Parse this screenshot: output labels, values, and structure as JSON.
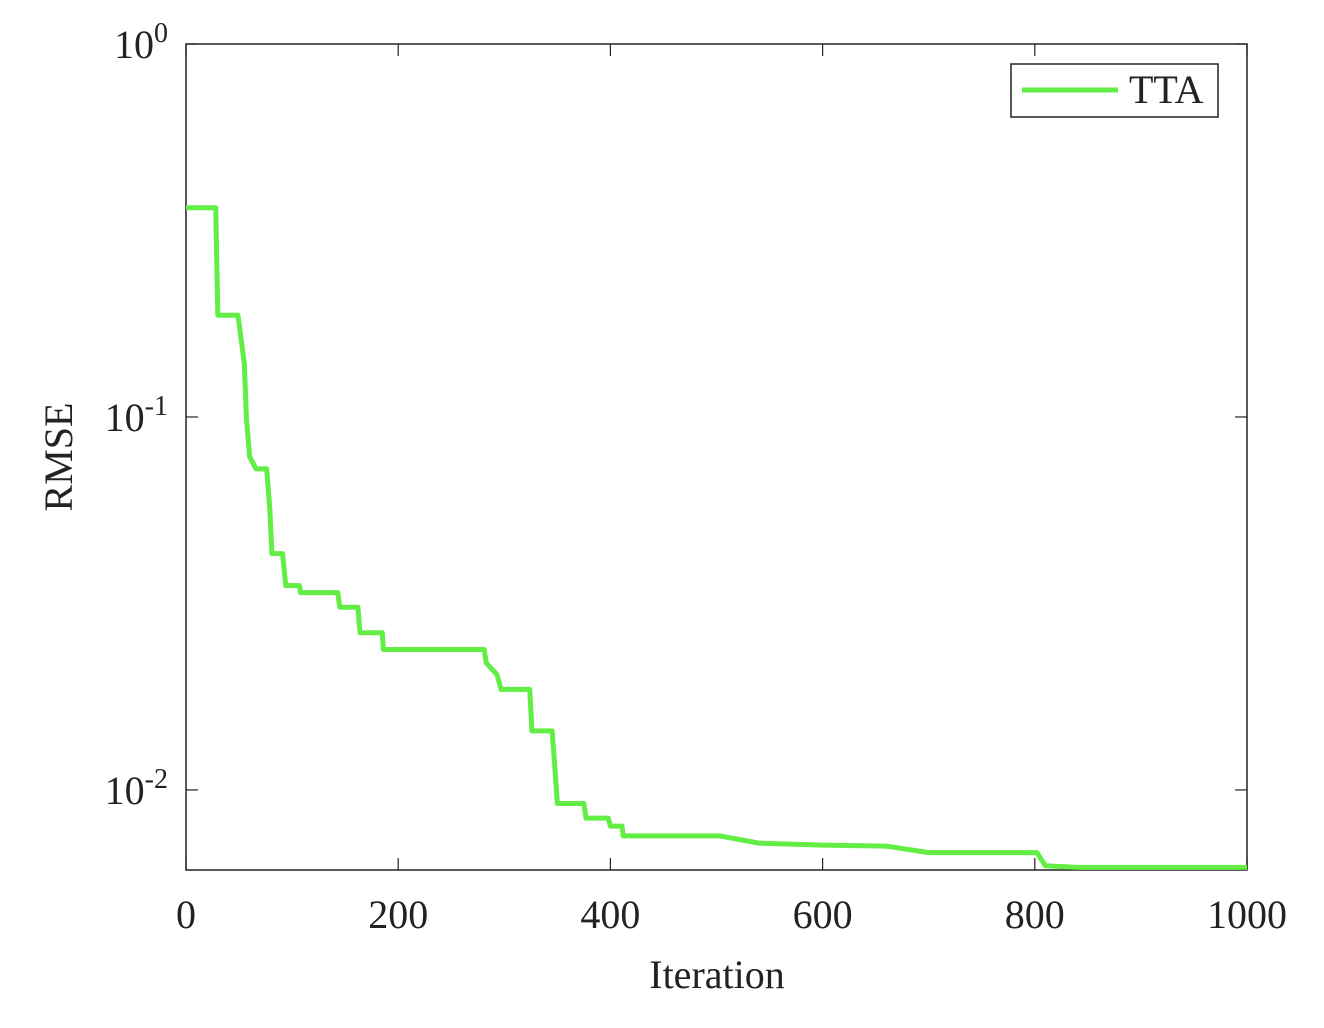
{
  "chart_data": {
    "type": "line",
    "xlabel": "Iteration",
    "ylabel": "RMSE",
    "x": [
      0,
      28,
      30,
      49,
      55,
      57,
      60,
      66,
      76,
      79,
      81,
      91,
      94,
      107,
      108,
      143,
      145,
      162,
      164,
      185,
      186,
      281,
      283,
      293,
      297,
      324,
      326,
      345,
      347,
      350,
      375,
      377,
      398,
      400,
      411,
      412,
      503,
      540,
      600,
      660,
      700,
      802,
      810,
      840,
      1000
    ],
    "series": [
      {
        "name": "TTA",
        "color": "#62ee44",
        "values": [
          0.364,
          0.364,
          0.1874,
          0.1874,
          0.1386,
          0.0988,
          0.0782,
          0.0726,
          0.0726,
          0.0567,
          0.043,
          0.043,
          0.0353,
          0.0353,
          0.0338,
          0.0338,
          0.0309,
          0.0309,
          0.0264,
          0.0264,
          0.0238,
          0.0238,
          0.0219,
          0.0204,
          0.0186,
          0.0186,
          0.0144,
          0.0144,
          0.0122,
          0.0092,
          0.0092,
          0.0084,
          0.0084,
          0.008,
          0.008,
          0.00753,
          0.00753,
          0.0072,
          0.00711,
          0.00707,
          0.00679,
          0.00679,
          0.00626,
          0.0062,
          0.0062
        ]
      }
    ],
    "xlim": [
      0,
      1000
    ],
    "xticks": [
      0,
      200,
      400,
      600,
      800,
      1000
    ],
    "ylim": [
      0.0061,
      1
    ],
    "yticks": [
      {
        "value": 0.01,
        "label": "10^-2"
      },
      {
        "value": 0.1,
        "label": "10^-1"
      },
      {
        "value": 1,
        "label": "10^0"
      }
    ],
    "yscale": "log",
    "legend": "upper right"
  }
}
